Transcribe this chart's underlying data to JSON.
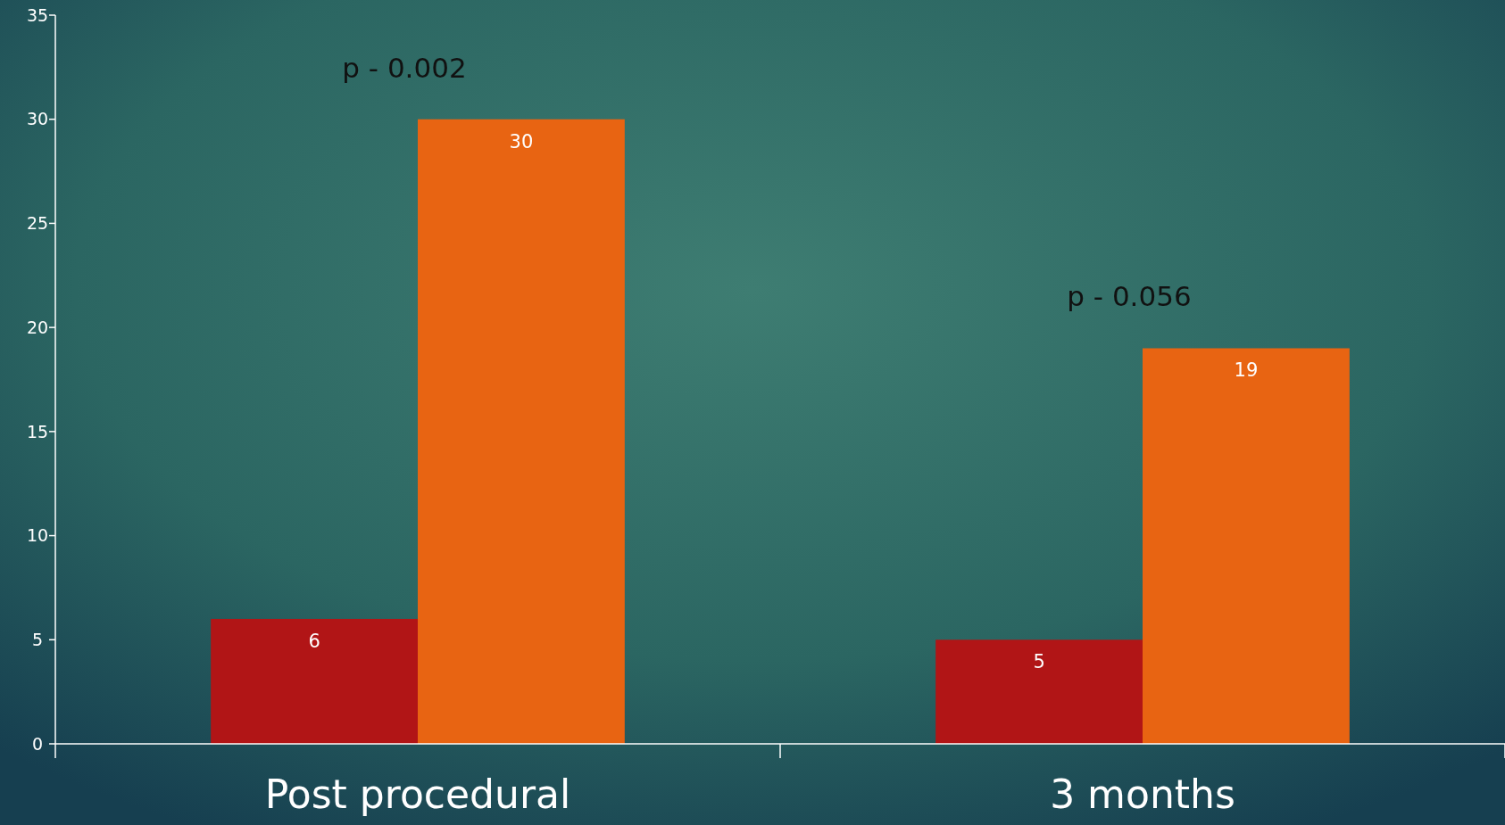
{
  "chart_data": {
    "type": "bar",
    "categories": [
      "Post procedural",
      "3 months"
    ],
    "series": [
      {
        "color": "#b11516",
        "values": [
          6,
          5
        ]
      },
      {
        "color": "#e86412",
        "values": [
          30,
          19
        ]
      }
    ],
    "ylim": [
      0,
      35
    ],
    "yticks": [
      0,
      5,
      10,
      15,
      20,
      25,
      30,
      35
    ],
    "data_labels": true,
    "annotations": [
      "p - 0.002",
      "p - 0.056"
    ]
  }
}
